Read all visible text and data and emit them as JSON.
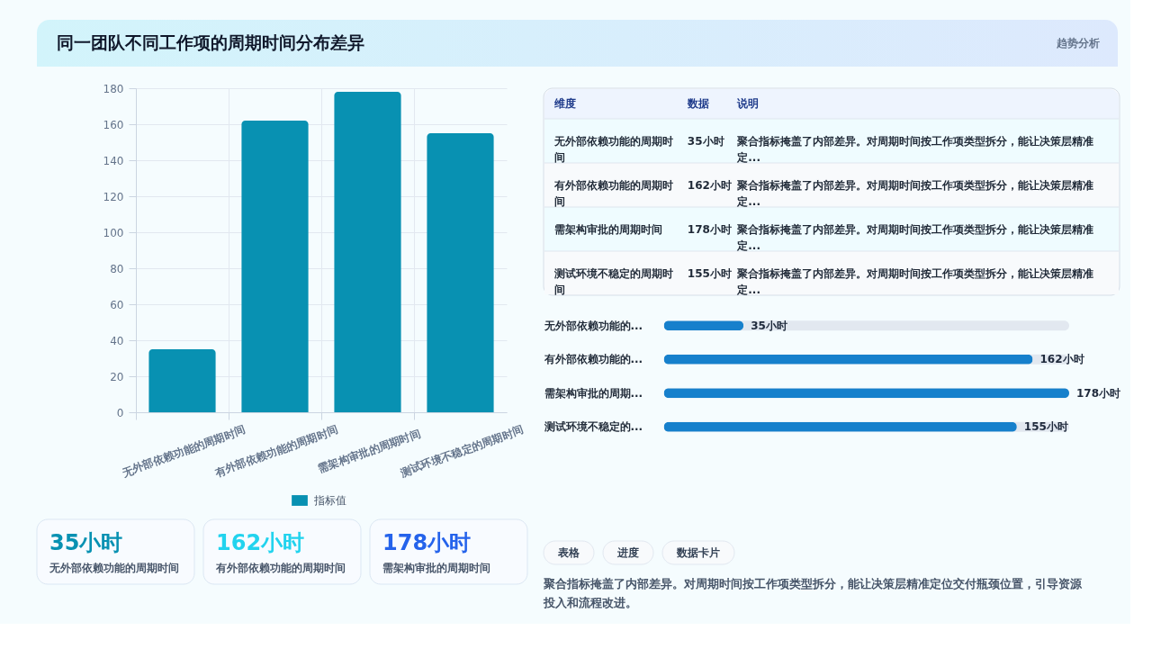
{
  "chart_data": [
    {
      "type": "bar",
      "title": "同一团队不同工作项的周期时间分布差异",
      "annotations": [
        "趋势分析"
      ],
      "categories": [
        "无外部依赖功能的周期时间",
        "有外部依赖功能的周期时间",
        "需架构审批的周期时间",
        "测试环境不稳定的周期时间"
      ],
      "series": [
        {
          "name": "指标值",
          "color": "#0891b2",
          "values": [
            35,
            162,
            178,
            155
          ]
        }
      ],
      "ylim": [
        0,
        180
      ],
      "yticks": [
        0,
        20,
        40,
        60,
        80,
        100,
        120,
        140,
        160,
        180
      ],
      "grid": true,
      "legend": "bottom"
    },
    {
      "type": "other",
      "categories": [
        "维度",
        "数据",
        "说明"
      ],
      "cell_labels": [
        [
          "无外部依赖功能的周期时间",
          "35小时",
          "聚合指标掩盖了内部差异。对周期时间按工作项类型拆分，能让决策层精准定..."
        ],
        [
          "有外部依赖功能的周期时间",
          "162小时",
          "聚合指标掩盖了内部差异。对周期时间按工作项类型拆分，能让决策层精准定..."
        ],
        [
          "需架构审批的周期时间",
          "178小时",
          "聚合指标掩盖了内部差异。对周期时间按工作项类型拆分，能让决策层精准定..."
        ],
        [
          "测试环境不稳定的周期时间",
          "155小时",
          "聚合指标掩盖了内部差异。对周期时间按工作项类型拆分，能让决策层精准定..."
        ]
      ]
    },
    {
      "type": "bar",
      "orientation": "horizontal",
      "categories": [
        "无外部依赖功能的...",
        "有外部依赖功能的...",
        "需架构审批的周期...",
        "测试环境不稳定的..."
      ],
      "values": [
        35,
        162,
        178,
        155
      ],
      "color": "#1680cc",
      "value_labels": [
        "35小时",
        "162小时",
        "178小时",
        "155小时"
      ],
      "tick_labels": "y"
    },
    {
      "type": "other",
      "annotations": [
        "35小时",
        "无外部依赖功能的周期时间",
        "162小时",
        "有外部依赖功能的周期时间",
        "178小时",
        "需架构审批的周期时间"
      ],
      "colors": [
        "#0891b2",
        "#22d3ee",
        "#2563eb"
      ]
    },
    {
      "type": "other",
      "categories": [
        "表格",
        "进度",
        "数据卡片"
      ],
      "annotations": [
        "聚合指标掩盖了内部差异。对周期时间按工作项类型拆分，能让决策层精准定位交付瓶颈位置，引导资源投入和流程改进。"
      ]
    }
  ]
}
